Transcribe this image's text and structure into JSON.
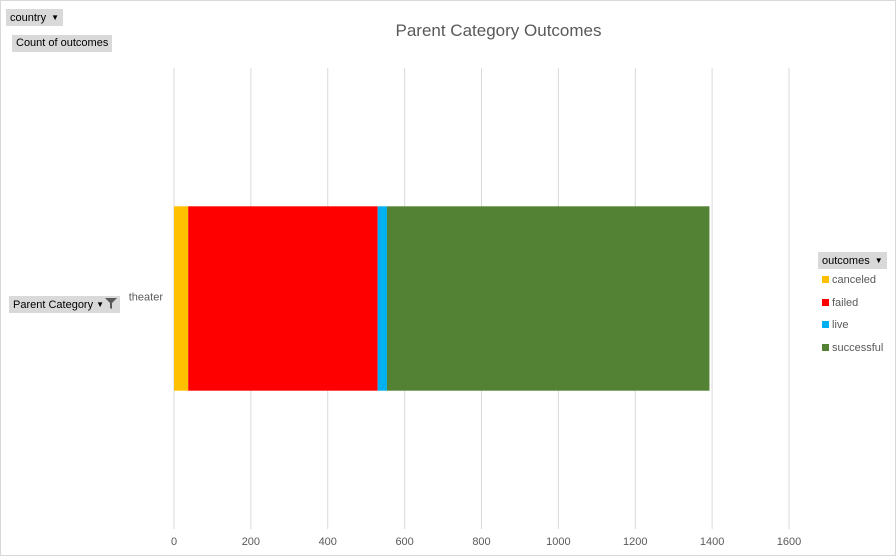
{
  "filters": {
    "country_label": "country",
    "values_label": "Count of outcomes",
    "row_field_label": "Parent Category",
    "legend_field_label": "outcomes"
  },
  "icons": {
    "dropdown": "chevron-down-icon",
    "filter": "filter-icon"
  },
  "chart_data": {
    "type": "bar",
    "orientation": "horizontal",
    "stacked": true,
    "title": "Parent Category Outcomes",
    "categories": [
      "theater"
    ],
    "series": [
      {
        "name": "canceled",
        "color": "#FFC000",
        "values": [
          37
        ]
      },
      {
        "name": "failed",
        "color": "#FF0000",
        "values": [
          493
        ]
      },
      {
        "name": "live",
        "color": "#00B0F0",
        "values": [
          24
        ]
      },
      {
        "name": "successful",
        "color": "#548235",
        "values": [
          839
        ]
      }
    ],
    "xlim": [
      0,
      1600
    ],
    "xticks": [
      "0",
      "200",
      "400",
      "600",
      "800",
      "1000",
      "1200",
      "1400",
      "1600"
    ],
    "grid": true,
    "legend": "right"
  }
}
